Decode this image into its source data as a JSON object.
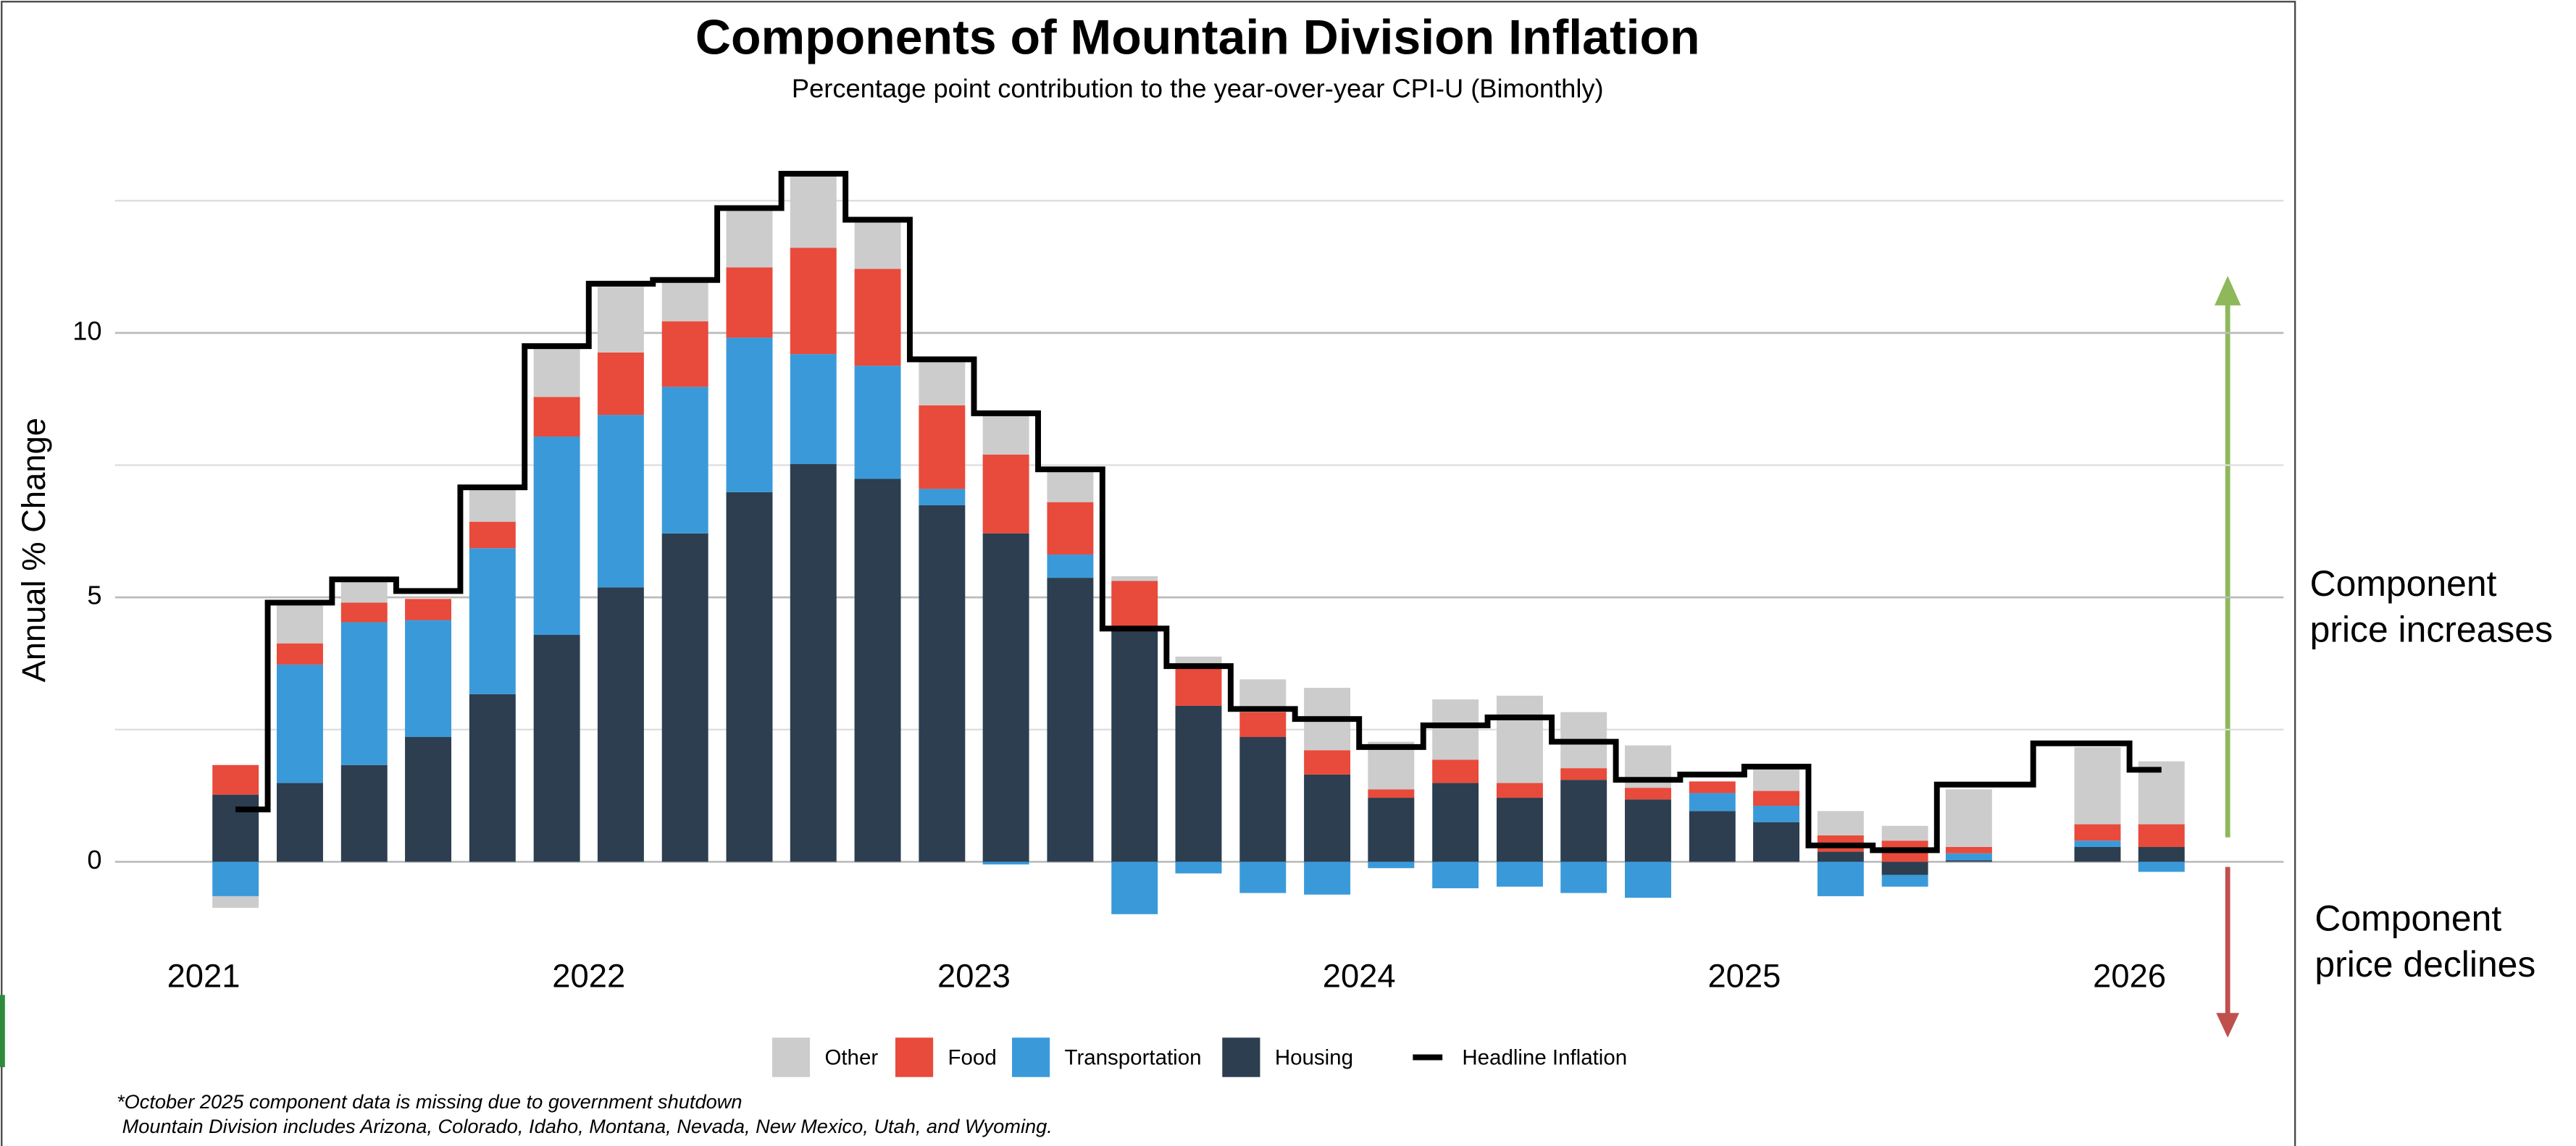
{
  "chart_data": {
    "type": "stacked-bar",
    "title": "Components of Mountain Division Inflation",
    "subtitle": "Percentage point contribution to the year-over-year CPI-U (Bimonthly)",
    "y_label": "Annual % Change",
    "x": [
      2021.083,
      2021.25,
      2021.417,
      2021.583,
      2021.75,
      2021.917,
      2022.083,
      2022.25,
      2022.417,
      2022.583,
      2022.75,
      2022.917,
      2023.083,
      2023.25,
      2023.417,
      2023.583,
      2023.75,
      2023.917,
      2024.083,
      2024.25,
      2024.417,
      2024.583,
      2024.75,
      2024.917,
      2025.083,
      2025.25,
      2025.417,
      2025.583,
      2025.75,
      2025.917,
      2026.083
    ],
    "xlim": [
      2020.77,
      2026.4
    ],
    "xticks": [
      2021,
      2022,
      2023,
      2024,
      2025,
      2026
    ],
    "ylim": [
      -3.2,
      13.5
    ],
    "yticks": [
      0,
      5,
      10
    ],
    "minor_yticks": [
      2.5,
      7.5,
      12.5
    ],
    "grid": true,
    "series": [
      {
        "name": "Other",
        "color": "#cccccc",
        "values": [
          -0.22,
          0.77,
          0.41,
          0,
          0.62,
          0.93,
          1.24,
          0.78,
          1.09,
          1.37,
          0.9,
          0.84,
          0.75,
          0.62,
          0.09,
          0.18,
          0.62,
          1.18,
          0.9,
          1.14,
          1.65,
          1.06,
          0.8,
          0,
          0.43,
          0.46,
          0.28,
          1.09,
          null,
          1.46,
          1.19
        ]
      },
      {
        "name": "Food",
        "color": "#e84a3b",
        "values": [
          0.56,
          0.4,
          0.37,
          0.4,
          0.5,
          0.75,
          1.18,
          1.24,
          1.33,
          2.01,
          1.83,
          1.58,
          1.49,
          0.99,
          0.9,
          0.75,
          0.47,
          0.46,
          0.16,
          0.44,
          0.28,
          0.22,
          0.22,
          0.22,
          0.28,
          0.31,
          0.4,
          0.12,
          null,
          0.31,
          0.43
        ]
      },
      {
        "name": "Transportation",
        "color": "#3a9ad9",
        "values": [
          -0.65,
          2.24,
          2.7,
          2.21,
          2.76,
          3.75,
          3.26,
          2.77,
          2.92,
          2.08,
          2.14,
          0.31,
          -0.05,
          0.44,
          -0.99,
          -0.22,
          -0.59,
          -0.62,
          -0.12,
          -0.5,
          -0.47,
          -0.59,
          -0.68,
          0.34,
          0.31,
          -0.65,
          -0.22,
          0.13,
          null,
          0.12,
          -0.19
        ]
      },
      {
        "name": "Housing",
        "color": "#2c3e50",
        "values": [
          1.27,
          1.49,
          1.83,
          2.36,
          3.17,
          4.29,
          5.19,
          6.21,
          6.99,
          7.52,
          7.24,
          6.74,
          6.21,
          5.37,
          4.41,
          2.95,
          2.36,
          1.65,
          1.21,
          1.49,
          1.21,
          1.55,
          1.18,
          0.96,
          0.75,
          0.19,
          -0.25,
          0.03,
          null,
          0.28,
          0.28
        ]
      },
      {
        "name": "Headline Inflation",
        "color": "#000000",
        "type": "step",
        "values": [
          0.99,
          4.9,
          5.34,
          5.12,
          7.08,
          9.75,
          10.93,
          11.0,
          12.36,
          13.01,
          12.14,
          9.5,
          8.48,
          7.42,
          4.41,
          3.7,
          2.89,
          2.7,
          2.17,
          2.58,
          2.73,
          2.27,
          1.55,
          1.65,
          1.8,
          0.31,
          0.22,
          1.46,
          null,
          2.24,
          1.74
        ]
      }
    ],
    "annotations": [
      {
        "text": [
          "Component",
          "price increases"
        ],
        "color": "#8fb85a"
      },
      {
        "text": [
          "Component",
          "price declines"
        ],
        "color": "#c0504d"
      }
    ],
    "footnotes": [
      "*October 2025 component data is missing due to government shutdown",
      " Mountain Division includes Arizona, Colorado, Idaho, Montana, Nevada, New Mexico, Utah, and Wyoming."
    ]
  }
}
